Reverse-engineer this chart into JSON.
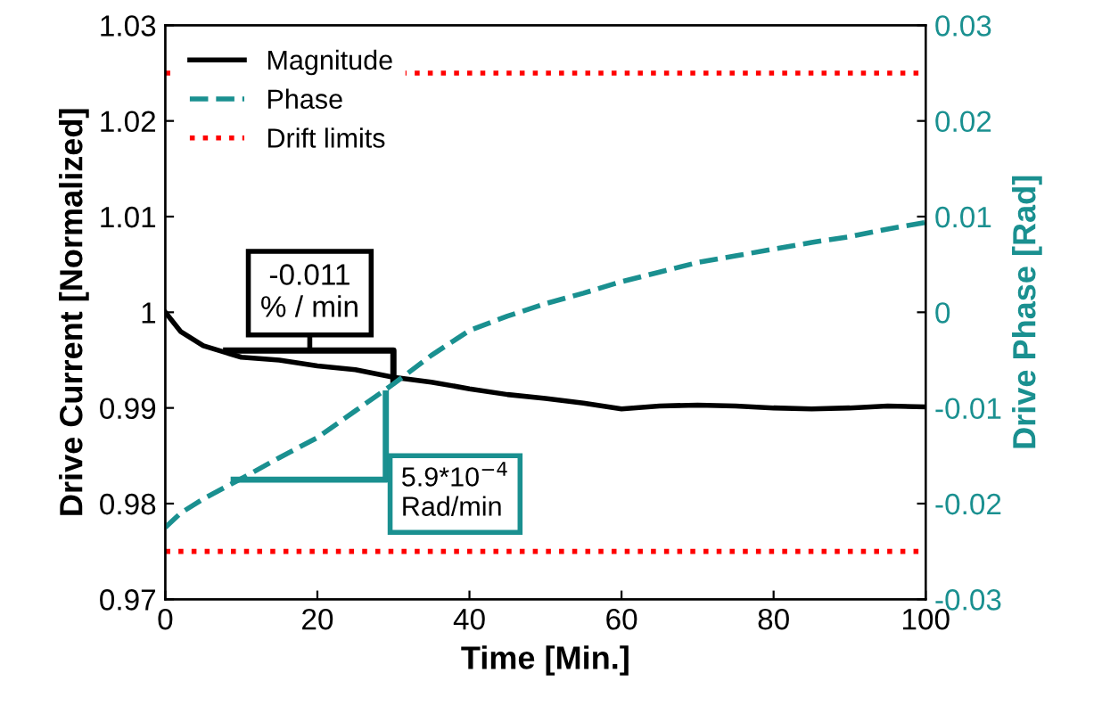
{
  "chart_data": {
    "type": "line",
    "xlabel": "Time [Min.]",
    "ylabel": "Drive Current [Normalized]",
    "y2label": "Drive Phase [Rad]",
    "x": [
      0,
      2,
      5,
      10,
      15,
      20,
      25,
      30,
      35,
      40,
      45,
      50,
      55,
      60,
      65,
      70,
      75,
      80,
      85,
      90,
      95,
      100
    ],
    "series": [
      {
        "name": "Magnitude",
        "color": "#000000",
        "line_style": "solid",
        "values": [
          1.0,
          0.998,
          0.9965,
          0.9953,
          0.995,
          0.9944,
          0.994,
          0.9932,
          0.9927,
          0.992,
          0.9914,
          0.991,
          0.9905,
          0.9899,
          0.9902,
          0.9903,
          0.9902,
          0.99,
          0.9899,
          0.99,
          0.9902,
          0.9901
        ]
      },
      {
        "name": "Phase",
        "color": "#1a9090",
        "line_style": "dashed",
        "axis": "y2",
        "values": [
          -0.0225,
          -0.021,
          -0.0195,
          -0.0174,
          -0.0152,
          -0.0131,
          -0.0103,
          -0.0075,
          -0.0045,
          -0.0019,
          -0.0004,
          0.0009,
          0.002,
          0.0032,
          0.0042,
          0.0052,
          0.0059,
          0.0066,
          0.0073,
          0.0079,
          0.0087,
          0.0094
        ]
      }
    ],
    "ref_lines": [
      {
        "axis": "y",
        "value": 1.025,
        "label": "Drift limits",
        "color": "#ff0000",
        "line_style": "dotted"
      },
      {
        "axis": "y",
        "value": 0.975,
        "color": "#ff0000",
        "line_style": "dotted"
      }
    ],
    "annotations": [
      "-0.011\n% / min",
      "5.9*10$^{−4}$\nRad/min"
    ],
    "xlim": [
      0,
      100
    ],
    "xticks": [
      0,
      20,
      40,
      60,
      80,
      100
    ],
    "ylim": [
      0.97,
      1.03
    ],
    "yticks": [
      {
        "value": 0.97,
        "label": "0.97"
      },
      {
        "value": 0.98,
        "label": "0.98"
      },
      {
        "value": 0.99,
        "label": "0.99"
      },
      {
        "value": 1.0,
        "label": "1"
      },
      {
        "value": 1.01,
        "label": "1.01"
      },
      {
        "value": 1.02,
        "label": "1.02"
      },
      {
        "value": 1.03,
        "label": "1.03"
      }
    ],
    "y2lim": [
      -0.03,
      0.03
    ],
    "y2ticks": [
      -0.03,
      -0.02,
      -0.01,
      0,
      0.01,
      0.02,
      0.03
    ],
    "grid": false,
    "legend": "top left"
  }
}
